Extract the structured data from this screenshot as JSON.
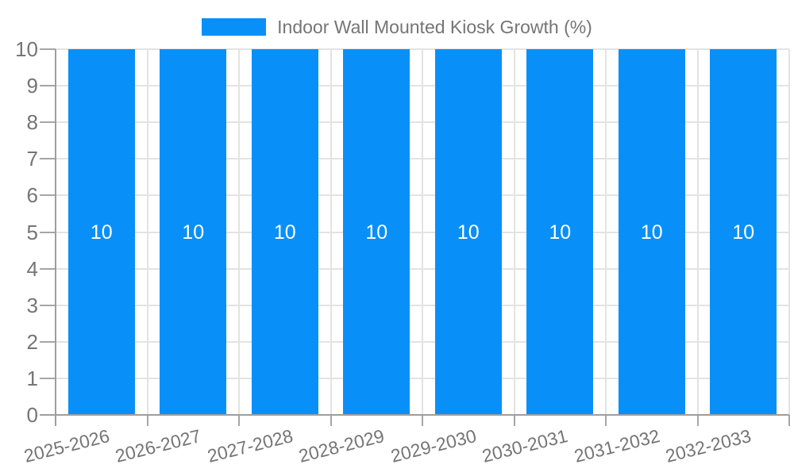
{
  "chart_data": {
    "type": "bar",
    "title": "",
    "legend": {
      "label": "Indoor Wall Mounted Kiosk Growth (%)",
      "position": "top-center"
    },
    "categories": [
      "2025-2026",
      "2026-2027",
      "2027-2028",
      "2028-2029",
      "2029-2030",
      "2030-2031",
      "2031-2032",
      "2032-2033"
    ],
    "series": [
      {
        "name": "Indoor Wall Mounted Kiosk Growth (%)",
        "values": [
          10,
          10,
          10,
          10,
          10,
          10,
          10,
          10
        ]
      }
    ],
    "bar_value_labels": [
      "10",
      "10",
      "10",
      "10",
      "10",
      "10",
      "10",
      "10"
    ],
    "xlabel": "",
    "ylabel": "",
    "ylim": [
      0,
      10
    ],
    "yticks": [
      0,
      1,
      2,
      3,
      4,
      5,
      6,
      7,
      8,
      9,
      10
    ],
    "grid": true,
    "x_label_rotation_deg": -14,
    "colors": {
      "bar": "#0990f8",
      "bar_label_text": "#ffffff",
      "axis_text": "#757575",
      "gridline": "#e3e3e3",
      "axis_line": "#9e9e9e",
      "tick": "#a6a6a6",
      "background": "#ffffff"
    }
  }
}
